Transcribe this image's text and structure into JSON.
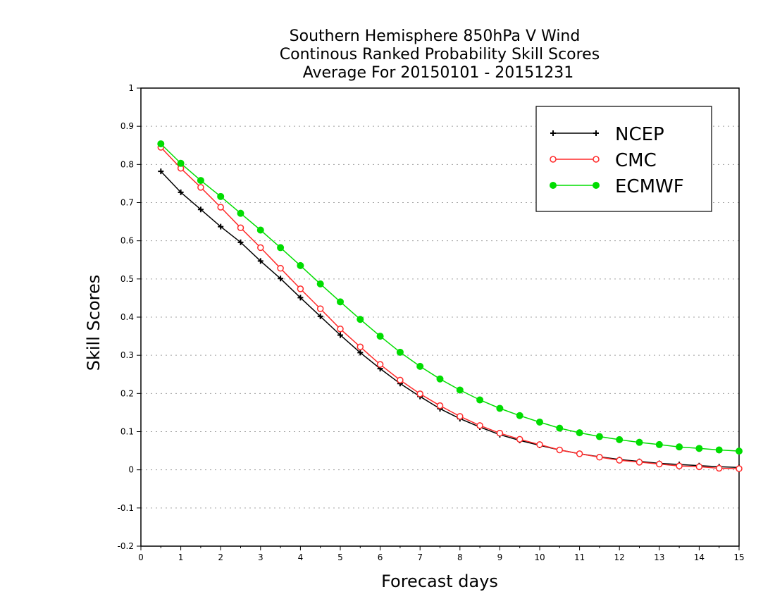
{
  "chart_data": {
    "type": "line",
    "title_lines": [
      "Southern Hemisphere 850hPa V Wind",
      "Continous Ranked Probability Skill Scores",
      "Average For 20150101 - 20151231"
    ],
    "xlabel": "Forecast days",
    "ylabel": "Skill Scores",
    "xlim": [
      0,
      15
    ],
    "ylim": [
      -0.2,
      1
    ],
    "x_ticks": [
      "0",
      "1",
      "2",
      "3",
      "4",
      "5",
      "6",
      "7",
      "8",
      "9",
      "10",
      "11",
      "12",
      "13",
      "14",
      "15"
    ],
    "y_ticks": [
      "1",
      "0.9",
      "0.8",
      "0.7",
      "0.6",
      "0.5",
      "0.4",
      "0.3",
      "0.2",
      "0.1",
      "0",
      "-0.1",
      "-0.2"
    ],
    "grid": "horizontal dotted",
    "legend_position": "top-right",
    "x": [
      0.5,
      1,
      1.5,
      2,
      2.5,
      3,
      3.5,
      4,
      4.5,
      5,
      5.5,
      6,
      6.5,
      7,
      7.5,
      8,
      8.5,
      9,
      9.5,
      10,
      10.5,
      11,
      11.5,
      12,
      12.5,
      13,
      13.5,
      14,
      14.5,
      15
    ],
    "series": [
      {
        "name": "NCEP",
        "color": "#000000",
        "marker": "plus",
        "values": [
          0.782,
          0.727,
          0.682,
          0.637,
          0.596,
          0.547,
          0.501,
          0.451,
          0.402,
          0.353,
          0.307,
          0.265,
          0.226,
          0.192,
          0.16,
          0.134,
          0.112,
          0.092,
          0.077,
          0.064,
          0.052,
          0.042,
          0.034,
          0.027,
          0.022,
          0.017,
          0.014,
          0.011,
          0.008,
          0.006
        ]
      },
      {
        "name": "CMC",
        "color": "#ff2a2a",
        "marker": "open-circle",
        "values": [
          0.845,
          0.79,
          0.74,
          0.688,
          0.634,
          0.582,
          0.528,
          0.474,
          0.422,
          0.369,
          0.322,
          0.276,
          0.235,
          0.199,
          0.168,
          0.14,
          0.116,
          0.096,
          0.08,
          0.066,
          0.052,
          0.042,
          0.033,
          0.025,
          0.02,
          0.015,
          0.01,
          0.008,
          0.004,
          0.003
        ]
      },
      {
        "name": "ECMWF",
        "color": "#00dd00",
        "marker": "filled-circle",
        "values": [
          0.854,
          0.803,
          0.758,
          0.716,
          0.672,
          0.628,
          0.582,
          0.535,
          0.487,
          0.44,
          0.394,
          0.35,
          0.308,
          0.271,
          0.238,
          0.209,
          0.183,
          0.161,
          0.142,
          0.125,
          0.109,
          0.097,
          0.087,
          0.079,
          0.072,
          0.066,
          0.06,
          0.056,
          0.052,
          0.049
        ]
      }
    ]
  }
}
